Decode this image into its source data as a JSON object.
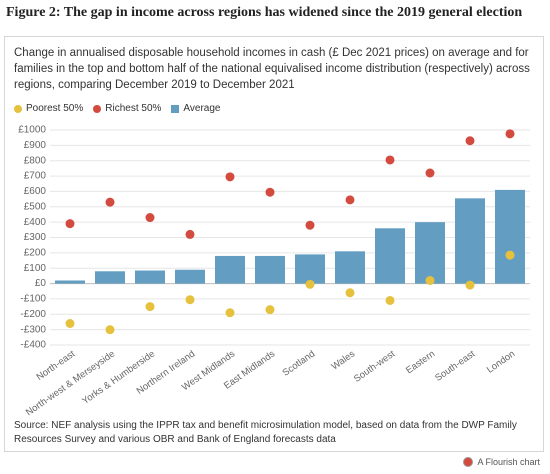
{
  "chart_data": {
    "type": "bar",
    "title": "Figure 2: The gap in income across regions has widened since the 2019 general election",
    "subtitle": "Change in annualised disposable household incomes in cash (£ Dec 2021 prices) on average and for families in the top and bottom half of the national equivalised income distribution (respectively) across regions, comparing December 2019 to December 2021",
    "categories": [
      "North-east",
      "North-west & Merseyside",
      "Yorks & Humberside",
      "Northern Ireland",
      "West Midlands",
      "East Midlands",
      "Scotland",
      "Wales",
      "South-west",
      "Eastern",
      "South-east",
      "London"
    ],
    "series": [
      {
        "name": "Poorest 50%",
        "type": "scatter",
        "color": "#e6c13d",
        "values": [
          -260,
          -300,
          -150,
          -105,
          -190,
          -170,
          -5,
          -60,
          -110,
          20,
          -10,
          185
        ]
      },
      {
        "name": "Richest 50%",
        "type": "scatter",
        "color": "#d24b3e",
        "values": [
          390,
          530,
          430,
          320,
          695,
          595,
          380,
          545,
          805,
          720,
          930,
          975
        ]
      },
      {
        "name": "Average",
        "type": "bar",
        "color": "#639ec2",
        "values": [
          20,
          80,
          85,
          90,
          180,
          180,
          190,
          210,
          360,
          400,
          555,
          610
        ]
      }
    ],
    "ylim": [
      -400,
      1000
    ],
    "yticks": [
      {
        "value": 1000,
        "label": "£1000"
      },
      {
        "value": 900,
        "label": "£900"
      },
      {
        "value": 800,
        "label": "£800"
      },
      {
        "value": 700,
        "label": "£700"
      },
      {
        "value": 600,
        "label": "£600"
      },
      {
        "value": 500,
        "label": "£500"
      },
      {
        "value": 400,
        "label": "£400"
      },
      {
        "value": 300,
        "label": "£300"
      },
      {
        "value": 200,
        "label": "£200"
      },
      {
        "value": 100,
        "label": "£100"
      },
      {
        "value": 0,
        "label": "£0"
      },
      {
        "value": -100,
        "label": "-£100"
      },
      {
        "value": -200,
        "label": "-£200"
      },
      {
        "value": -300,
        "label": "-£300"
      },
      {
        "value": -400,
        "label": "-£400"
      }
    ],
    "grid": true,
    "source": "Source: NEF analysis using the IPPR tax and benefit microsimulation model, based on data from the DWP Family Resources Survey and various OBR and Bank of England forecasts data",
    "credit": "A Flourish chart"
  }
}
